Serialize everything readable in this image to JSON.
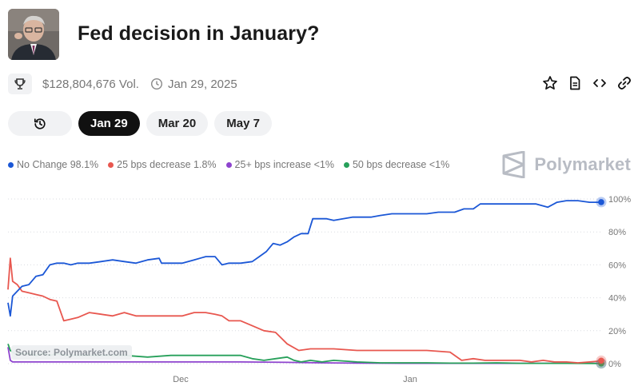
{
  "header": {
    "title": "Fed decision in January?"
  },
  "meta": {
    "volume": "$128,804,676 Vol.",
    "end_date": "Jan 29, 2025"
  },
  "tabs": [
    {
      "label": "Jan 29",
      "active": true
    },
    {
      "label": "Mar 20",
      "active": false
    },
    {
      "label": "May 7",
      "active": false
    }
  ],
  "legend": [
    {
      "label": "No Change 98.1%",
      "color": "#1b57d6"
    },
    {
      "label": "25 bps decrease 1.8%",
      "color": "#e8574f"
    },
    {
      "label": "25+ bps increase <1%",
      "color": "#8e44ce"
    },
    {
      "label": "50 bps decrease <1%",
      "color": "#27a05a"
    }
  ],
  "brand": {
    "name": "Polymarket"
  },
  "source": "Source: Polymarket.com",
  "icons": [
    "trophy-icon",
    "clock-icon",
    "star-icon",
    "document-icon",
    "code-icon",
    "link-icon",
    "history-icon"
  ],
  "chart_data": {
    "type": "line",
    "xlabel": "",
    "ylabel": "",
    "x_tick_labels": [
      "Dec",
      "Jan"
    ],
    "y_tick_labels": [
      "100%",
      "80%",
      "60%",
      "40%",
      "20%",
      "0%"
    ],
    "ylim": [
      0,
      100
    ],
    "grid": "horizontal dotted",
    "legend_position": "top-left",
    "series": [
      {
        "name": "No Change",
        "color": "#1b57d6",
        "points": [
          [
            0,
            37
          ],
          [
            1,
            29
          ],
          [
            2,
            41
          ],
          [
            4,
            44
          ],
          [
            6,
            47
          ],
          [
            9,
            48
          ],
          [
            12,
            53
          ],
          [
            15,
            54
          ],
          [
            18,
            60
          ],
          [
            21,
            61
          ],
          [
            24,
            61
          ],
          [
            27,
            60
          ],
          [
            30,
            61
          ],
          [
            35,
            61
          ],
          [
            40,
            62
          ],
          [
            45,
            63
          ],
          [
            50,
            62
          ],
          [
            55,
            61
          ],
          [
            60,
            63
          ],
          [
            65,
            64
          ],
          [
            66,
            61
          ],
          [
            70,
            61
          ],
          [
            75,
            61
          ],
          [
            80,
            63
          ],
          [
            85,
            65
          ],
          [
            89,
            65
          ],
          [
            92,
            60
          ],
          [
            95,
            61
          ],
          [
            100,
            61
          ],
          [
            105,
            62
          ],
          [
            108,
            65
          ],
          [
            111,
            68
          ],
          [
            114,
            73
          ],
          [
            117,
            72
          ],
          [
            120,
            74
          ],
          [
            123,
            77
          ],
          [
            126,
            79
          ],
          [
            129,
            79
          ],
          [
            131,
            88
          ],
          [
            134,
            88
          ],
          [
            137,
            88
          ],
          [
            140,
            87
          ],
          [
            144,
            88
          ],
          [
            148,
            89
          ],
          [
            152,
            89
          ],
          [
            156,
            89
          ],
          [
            160,
            90
          ],
          [
            165,
            91
          ],
          [
            170,
            91
          ],
          [
            175,
            91
          ],
          [
            180,
            91
          ],
          [
            185,
            92
          ],
          [
            192,
            92
          ],
          [
            196,
            94
          ],
          [
            200,
            94
          ],
          [
            203,
            97
          ],
          [
            207,
            97
          ],
          [
            213,
            97
          ],
          [
            220,
            97
          ],
          [
            227,
            97
          ],
          [
            232,
            95
          ],
          [
            236,
            98
          ],
          [
            240,
            99
          ],
          [
            245,
            99
          ],
          [
            250,
            98
          ],
          [
            254,
            98
          ],
          [
            255,
            98.1
          ]
        ]
      },
      {
        "name": "25 bps decrease",
        "color": "#e8574f",
        "points": [
          [
            0,
            45
          ],
          [
            1,
            64
          ],
          [
            2,
            50
          ],
          [
            4,
            48
          ],
          [
            6,
            44
          ],
          [
            9,
            43
          ],
          [
            12,
            42
          ],
          [
            15,
            41
          ],
          [
            18,
            39
          ],
          [
            21,
            38
          ],
          [
            24,
            26
          ],
          [
            27,
            27
          ],
          [
            30,
            28
          ],
          [
            35,
            31
          ],
          [
            40,
            30
          ],
          [
            45,
            29
          ],
          [
            50,
            31
          ],
          [
            55,
            29
          ],
          [
            60,
            29
          ],
          [
            65,
            29
          ],
          [
            70,
            29
          ],
          [
            75,
            29
          ],
          [
            80,
            31
          ],
          [
            85,
            31
          ],
          [
            89,
            30
          ],
          [
            92,
            29
          ],
          [
            95,
            26
          ],
          [
            100,
            26
          ],
          [
            105,
            23
          ],
          [
            110,
            20
          ],
          [
            115,
            19
          ],
          [
            120,
            12
          ],
          [
            125,
            8
          ],
          [
            130,
            9
          ],
          [
            140,
            9
          ],
          [
            150,
            8
          ],
          [
            160,
            8
          ],
          [
            170,
            8
          ],
          [
            180,
            8
          ],
          [
            190,
            7
          ],
          [
            195,
            2
          ],
          [
            200,
            3
          ],
          [
            205,
            2
          ],
          [
            210,
            2
          ],
          [
            220,
            2
          ],
          [
            225,
            1
          ],
          [
            230,
            2
          ],
          [
            235,
            1
          ],
          [
            240,
            1
          ],
          [
            245,
            0.5
          ],
          [
            250,
            1
          ],
          [
            254,
            1.5
          ],
          [
            255,
            1.8
          ]
        ]
      },
      {
        "name": "25+ bps increase",
        "color": "#8e44ce",
        "points": [
          [
            0,
            10
          ],
          [
            1,
            2
          ],
          [
            2,
            1
          ],
          [
            5,
            1
          ],
          [
            10,
            1
          ],
          [
            20,
            1
          ],
          [
            40,
            1
          ],
          [
            60,
            1
          ],
          [
            80,
            1
          ],
          [
            100,
            1
          ],
          [
            120,
            0.8
          ],
          [
            135,
            0.5
          ],
          [
            150,
            0.3
          ],
          [
            170,
            0.2
          ],
          [
            200,
            0.2
          ],
          [
            230,
            0.2
          ],
          [
            255,
            0.2
          ]
        ]
      },
      {
        "name": "50 bps decrease",
        "color": "#27a05a",
        "points": [
          [
            0,
            12
          ],
          [
            1,
            8
          ],
          [
            3,
            6
          ],
          [
            6,
            6
          ],
          [
            9,
            6
          ],
          [
            12,
            5
          ],
          [
            15,
            6
          ],
          [
            18,
            5
          ],
          [
            21,
            6
          ],
          [
            25,
            5
          ],
          [
            30,
            5
          ],
          [
            40,
            5
          ],
          [
            50,
            5
          ],
          [
            60,
            4
          ],
          [
            70,
            5
          ],
          [
            80,
            5
          ],
          [
            90,
            5
          ],
          [
            100,
            5
          ],
          [
            105,
            3
          ],
          [
            110,
            2
          ],
          [
            115,
            3
          ],
          [
            120,
            4
          ],
          [
            123,
            2
          ],
          [
            126,
            1
          ],
          [
            130,
            2
          ],
          [
            135,
            1
          ],
          [
            140,
            2
          ],
          [
            150,
            1
          ],
          [
            160,
            0.5
          ],
          [
            170,
            0.5
          ],
          [
            180,
            0.5
          ],
          [
            190,
            0.3
          ],
          [
            200,
            0.3
          ],
          [
            210,
            0.5
          ],
          [
            220,
            0.2
          ],
          [
            230,
            0.2
          ],
          [
            240,
            0.2
          ],
          [
            255,
            0.1
          ]
        ]
      }
    ]
  }
}
